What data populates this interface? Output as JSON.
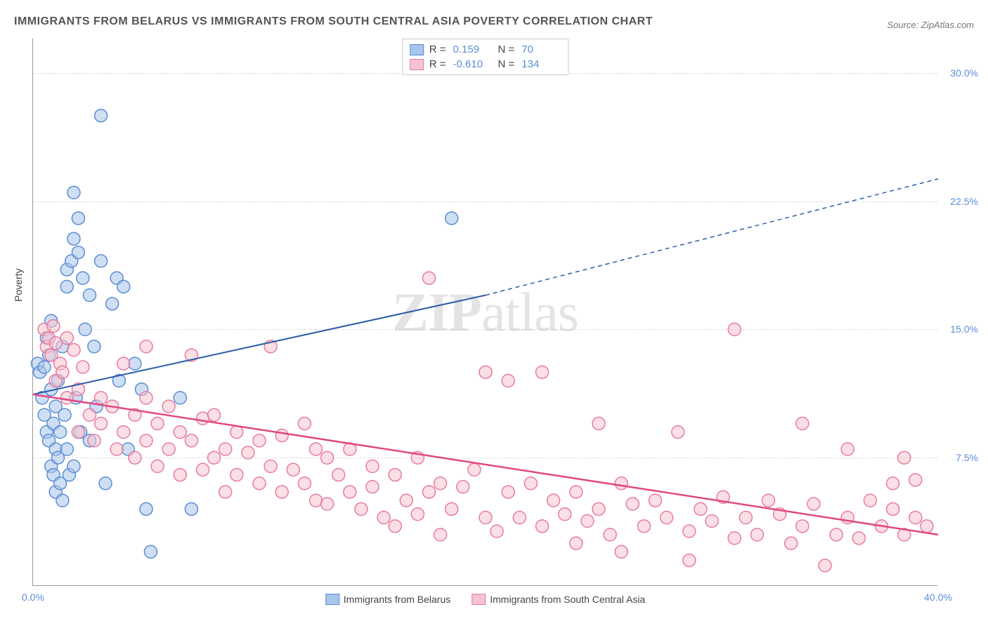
{
  "title": "IMMIGRANTS FROM BELARUS VS IMMIGRANTS FROM SOUTH CENTRAL ASIA POVERTY CORRELATION CHART",
  "source": "Source: ZipAtlas.com",
  "watermark": {
    "zip": "ZIP",
    "atlas": "atlas"
  },
  "ylabel": "Poverty",
  "chart": {
    "type": "scatter",
    "background_color": "#ffffff",
    "grid_color": "#dddddd",
    "axis_color": "#999999",
    "tick_color": "#5b8dd6",
    "tick_fontsize": 14,
    "xlim": [
      0,
      40
    ],
    "ylim": [
      0,
      32
    ],
    "xticks": [
      {
        "v": 0,
        "label": "0.0%"
      },
      {
        "v": 40,
        "label": "40.0%"
      }
    ],
    "yticks": [
      {
        "v": 7.5,
        "label": "7.5%"
      },
      {
        "v": 15,
        "label": "15.0%"
      },
      {
        "v": 22.5,
        "label": "22.5%"
      },
      {
        "v": 30,
        "label": "30.0%"
      }
    ],
    "marker_radius": 9,
    "marker_stroke_width": 1.5,
    "marker_opacity": 0.55,
    "series": [
      {
        "name": "Immigrants from Belarus",
        "fill": "#a8c5ea",
        "stroke": "#5b8dd6",
        "r_stat": "0.159",
        "n_stat": "70",
        "trend": {
          "x1": 0,
          "y1": 11.2,
          "x2_solid": 20,
          "y2_solid": 17.0,
          "x2_dash": 40,
          "y2_dash": 23.8,
          "color": "#2e5da8",
          "width": 2
        },
        "points": [
          [
            0.2,
            13.0
          ],
          [
            0.3,
            12.5
          ],
          [
            0.4,
            11.0
          ],
          [
            0.5,
            12.8
          ],
          [
            0.5,
            10.0
          ],
          [
            0.6,
            9.0
          ],
          [
            0.6,
            14.5
          ],
          [
            0.7,
            8.5
          ],
          [
            0.7,
            13.5
          ],
          [
            0.8,
            7.0
          ],
          [
            0.8,
            11.5
          ],
          [
            0.8,
            15.5
          ],
          [
            0.9,
            9.5
          ],
          [
            0.9,
            6.5
          ],
          [
            1.0,
            10.5
          ],
          [
            1.0,
            8.0
          ],
          [
            1.0,
            5.5
          ],
          [
            1.1,
            12.0
          ],
          [
            1.1,
            7.5
          ],
          [
            1.2,
            9.0
          ],
          [
            1.2,
            6.0
          ],
          [
            1.3,
            14.0
          ],
          [
            1.3,
            5.0
          ],
          [
            1.4,
            10.0
          ],
          [
            1.5,
            8.0
          ],
          [
            1.5,
            17.5
          ],
          [
            1.5,
            18.5
          ],
          [
            1.6,
            6.5
          ],
          [
            1.7,
            19.0
          ],
          [
            1.8,
            20.3
          ],
          [
            1.8,
            7.0
          ],
          [
            1.8,
            23.0
          ],
          [
            1.9,
            11.0
          ],
          [
            2.0,
            19.5
          ],
          [
            2.0,
            21.5
          ],
          [
            2.1,
            9.0
          ],
          [
            2.2,
            18.0
          ],
          [
            2.3,
            15.0
          ],
          [
            2.5,
            8.5
          ],
          [
            2.5,
            17.0
          ],
          [
            2.7,
            14.0
          ],
          [
            2.8,
            10.5
          ],
          [
            3.0,
            19.0
          ],
          [
            3.0,
            27.5
          ],
          [
            3.2,
            6.0
          ],
          [
            3.5,
            16.5
          ],
          [
            3.7,
            18.0
          ],
          [
            3.8,
            12.0
          ],
          [
            4.0,
            17.5
          ],
          [
            4.2,
            8.0
          ],
          [
            4.5,
            13.0
          ],
          [
            4.8,
            11.5
          ],
          [
            5.0,
            4.5
          ],
          [
            5.2,
            2.0
          ],
          [
            6.5,
            11.0
          ],
          [
            7.0,
            4.5
          ],
          [
            18.5,
            21.5
          ]
        ]
      },
      {
        "name": "Immigrants from South Central Asia",
        "fill": "#f5c4d0",
        "stroke": "#e87ba0",
        "r_stat": "-0.610",
        "n_stat": "134",
        "trend": {
          "x1": 0,
          "y1": 11.2,
          "x2_solid": 40,
          "y2_solid": 3.0,
          "color": "#e04880",
          "width": 2.5
        },
        "points": [
          [
            0.5,
            15.0
          ],
          [
            0.6,
            14.0
          ],
          [
            0.7,
            14.5
          ],
          [
            0.8,
            13.5
          ],
          [
            0.9,
            15.2
          ],
          [
            1.0,
            14.2
          ],
          [
            1.0,
            12.0
          ],
          [
            1.2,
            13.0
          ],
          [
            1.3,
            12.5
          ],
          [
            1.5,
            14.5
          ],
          [
            1.5,
            11.0
          ],
          [
            1.8,
            13.8
          ],
          [
            2.0,
            11.5
          ],
          [
            2.0,
            9.0
          ],
          [
            2.2,
            12.8
          ],
          [
            2.5,
            10.0
          ],
          [
            2.7,
            8.5
          ],
          [
            3.0,
            11.0
          ],
          [
            3.0,
            9.5
          ],
          [
            3.5,
            10.5
          ],
          [
            3.7,
            8.0
          ],
          [
            4.0,
            13.0
          ],
          [
            4.0,
            9.0
          ],
          [
            4.5,
            10.0
          ],
          [
            4.5,
            7.5
          ],
          [
            5.0,
            14.0
          ],
          [
            5.0,
            11.0
          ],
          [
            5.0,
            8.5
          ],
          [
            5.5,
            9.5
          ],
          [
            5.5,
            7.0
          ],
          [
            6.0,
            10.5
          ],
          [
            6.0,
            8.0
          ],
          [
            6.5,
            9.0
          ],
          [
            6.5,
            6.5
          ],
          [
            7.0,
            13.5
          ],
          [
            7.0,
            8.5
          ],
          [
            7.5,
            9.8
          ],
          [
            7.5,
            6.8
          ],
          [
            8.0,
            10.0
          ],
          [
            8.0,
            7.5
          ],
          [
            8.5,
            8.0
          ],
          [
            8.5,
            5.5
          ],
          [
            9.0,
            9.0
          ],
          [
            9.0,
            6.5
          ],
          [
            9.5,
            7.8
          ],
          [
            10.0,
            8.5
          ],
          [
            10.0,
            6.0
          ],
          [
            10.5,
            14.0
          ],
          [
            10.5,
            7.0
          ],
          [
            11.0,
            8.8
          ],
          [
            11.0,
            5.5
          ],
          [
            11.5,
            6.8
          ],
          [
            12.0,
            9.5
          ],
          [
            12.0,
            6.0
          ],
          [
            12.5,
            8.0
          ],
          [
            12.5,
            5.0
          ],
          [
            13.0,
            7.5
          ],
          [
            13.0,
            4.8
          ],
          [
            13.5,
            6.5
          ],
          [
            14.0,
            8.0
          ],
          [
            14.0,
            5.5
          ],
          [
            14.5,
            4.5
          ],
          [
            15.0,
            7.0
          ],
          [
            15.0,
            5.8
          ],
          [
            15.5,
            4.0
          ],
          [
            16.0,
            6.5
          ],
          [
            16.0,
            3.5
          ],
          [
            16.5,
            5.0
          ],
          [
            17.0,
            7.5
          ],
          [
            17.0,
            4.2
          ],
          [
            17.5,
            18.0
          ],
          [
            17.5,
            5.5
          ],
          [
            18.0,
            6.0
          ],
          [
            18.0,
            3.0
          ],
          [
            18.5,
            4.5
          ],
          [
            19.0,
            5.8
          ],
          [
            19.5,
            6.8
          ],
          [
            20.0,
            4.0
          ],
          [
            20.0,
            12.5
          ],
          [
            20.5,
            3.2
          ],
          [
            21.0,
            5.5
          ],
          [
            21.0,
            12.0
          ],
          [
            21.5,
            4.0
          ],
          [
            22.0,
            6.0
          ],
          [
            22.5,
            12.5
          ],
          [
            22.5,
            3.5
          ],
          [
            23.0,
            5.0
          ],
          [
            23.5,
            4.2
          ],
          [
            24.0,
            5.5
          ],
          [
            24.0,
            2.5
          ],
          [
            24.5,
            3.8
          ],
          [
            25.0,
            9.5
          ],
          [
            25.0,
            4.5
          ],
          [
            25.5,
            3.0
          ],
          [
            26.0,
            6.0
          ],
          [
            26.0,
            2.0
          ],
          [
            26.5,
            4.8
          ],
          [
            27.0,
            3.5
          ],
          [
            27.5,
            5.0
          ],
          [
            28.0,
            4.0
          ],
          [
            28.5,
            9.0
          ],
          [
            29.0,
            3.2
          ],
          [
            29.0,
            1.5
          ],
          [
            29.5,
            4.5
          ],
          [
            30.0,
            3.8
          ],
          [
            30.5,
            5.2
          ],
          [
            31.0,
            15.0
          ],
          [
            31.0,
            2.8
          ],
          [
            31.5,
            4.0
          ],
          [
            32.0,
            3.0
          ],
          [
            32.5,
            5.0
          ],
          [
            33.0,
            4.2
          ],
          [
            33.5,
            2.5
          ],
          [
            34.0,
            3.5
          ],
          [
            34.0,
            9.5
          ],
          [
            34.5,
            4.8
          ],
          [
            35.0,
            1.2
          ],
          [
            35.5,
            3.0
          ],
          [
            36.0,
            4.0
          ],
          [
            36.0,
            8.0
          ],
          [
            36.5,
            2.8
          ],
          [
            37.0,
            5.0
          ],
          [
            37.5,
            3.5
          ],
          [
            38.0,
            4.5
          ],
          [
            38.0,
            6.0
          ],
          [
            38.5,
            7.5
          ],
          [
            38.5,
            3.0
          ],
          [
            39.0,
            4.0
          ],
          [
            39.0,
            6.2
          ],
          [
            39.5,
            3.5
          ]
        ]
      }
    ]
  },
  "legend_top_labels": {
    "R": "R =",
    "N": "N ="
  },
  "legend_bottom": [
    {
      "label": "Immigrants from Belarus",
      "fill": "#a8c5ea",
      "stroke": "#5b8dd6"
    },
    {
      "label": "Immigrants from South Central Asia",
      "fill": "#f5c4d0",
      "stroke": "#e87ba0"
    }
  ]
}
